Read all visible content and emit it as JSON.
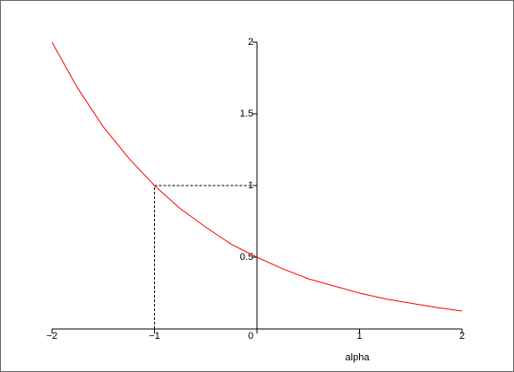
{
  "chart_data": {
    "type": "line",
    "x_label": "alpha",
    "x": [
      -2,
      -1.75,
      -1.5,
      -1.25,
      -1,
      -0.75,
      -0.5,
      -0.25,
      0,
      0.25,
      0.5,
      0.75,
      1,
      1.25,
      1.5,
      1.75,
      2
    ],
    "values": [
      2,
      1.68,
      1.41,
      1.19,
      1,
      0.84,
      0.71,
      0.59,
      0.5,
      0.42,
      0.35,
      0.3,
      0.25,
      0.21,
      0.18,
      0.15,
      0.125
    ],
    "color": "#ff0000",
    "reference_point": {
      "x": -1,
      "y": 1
    },
    "xlim": [
      -2,
      2
    ],
    "ylim": [
      0,
      2
    ],
    "xticks": [
      {
        "value": -2,
        "label": "−2"
      },
      {
        "value": -1,
        "label": "−1"
      },
      0,
      1,
      2
    ],
    "yticks": [
      0.5,
      1,
      1.5,
      2
    ]
  }
}
